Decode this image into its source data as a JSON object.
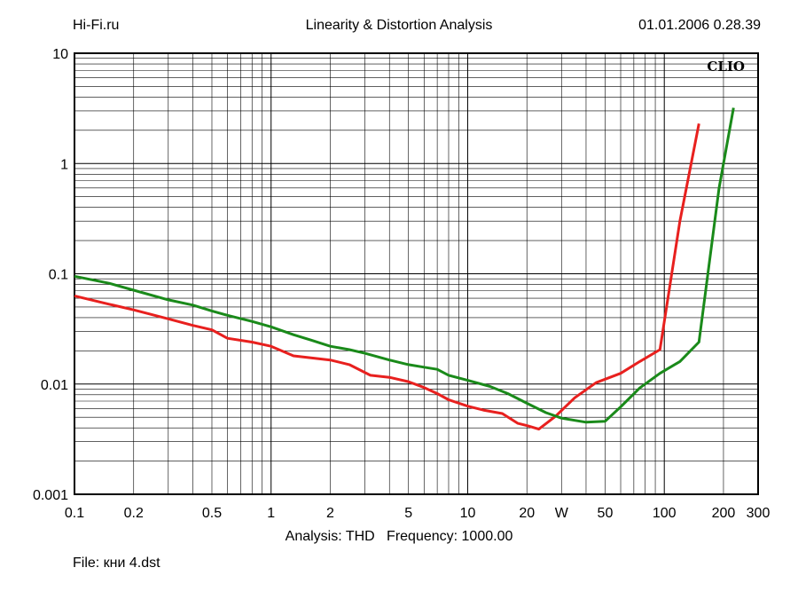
{
  "header": {
    "left": "Hi-Fi.ru",
    "title": "Linearity & Distortion Analysis",
    "timestamp": "01.01.2006 0.28.39"
  },
  "footer": {
    "analysis": "Analysis: THD   Frequency: 1000.00",
    "file": "File: кни 4.dst"
  },
  "chart_data": {
    "type": "line",
    "title": "Linearity & Distortion Analysis",
    "brand_label": "CLIO",
    "x_scale": "log",
    "y_scale": "log",
    "xlim": [
      0.1,
      300
    ],
    "ylim": [
      0.001,
      10
    ],
    "x_ticks": [
      {
        "value": 0.1,
        "label": "0.1"
      },
      {
        "value": 0.2,
        "label": "0.2"
      },
      {
        "value": 0.5,
        "label": "0.5"
      },
      {
        "value": 1,
        "label": "1"
      },
      {
        "value": 2,
        "label": "2"
      },
      {
        "value": 5,
        "label": "5"
      },
      {
        "value": 10,
        "label": "10"
      },
      {
        "value": 20,
        "label": "20"
      },
      {
        "value": 30,
        "label": "W"
      },
      {
        "value": 50,
        "label": "50"
      },
      {
        "value": 100,
        "label": "100"
      },
      {
        "value": 200,
        "label": "200"
      },
      {
        "value": 300,
        "label": "300"
      }
    ],
    "y_ticks": [
      {
        "value": 10,
        "label": "10"
      },
      {
        "value": 1,
        "label": "1"
      },
      {
        "value": 0.1,
        "label": "0.1"
      },
      {
        "value": 0.01,
        "label": "0.01"
      },
      {
        "value": 0.001,
        "label": "0.001"
      }
    ],
    "grid": true,
    "colors": {
      "grid": "#000000",
      "red": "#e8201e",
      "green": "#1a8a1a"
    },
    "series": [
      {
        "color": "#e8201e",
        "points": [
          [
            0.1,
            0.063
          ],
          [
            0.15,
            0.053
          ],
          [
            0.2,
            0.047
          ],
          [
            0.3,
            0.039
          ],
          [
            0.4,
            0.034
          ],
          [
            0.5,
            0.031
          ],
          [
            0.6,
            0.026
          ],
          [
            0.8,
            0.024
          ],
          [
            1,
            0.022
          ],
          [
            1.3,
            0.018
          ],
          [
            2,
            0.0165
          ],
          [
            2.5,
            0.015
          ],
          [
            3.2,
            0.012
          ],
          [
            4,
            0.0115
          ],
          [
            5,
            0.0105
          ],
          [
            6,
            0.0093
          ],
          [
            7,
            0.0082
          ],
          [
            8,
            0.0072
          ],
          [
            10,
            0.0063
          ],
          [
            12,
            0.0058
          ],
          [
            15,
            0.0054
          ],
          [
            18,
            0.0044
          ],
          [
            20,
            0.0042
          ],
          [
            23,
            0.0039
          ],
          [
            28,
            0.0051
          ],
          [
            35,
            0.0075
          ],
          [
            45,
            0.0103
          ],
          [
            60,
            0.0125
          ],
          [
            75,
            0.016
          ],
          [
            95,
            0.0205
          ],
          [
            120,
            0.3
          ],
          [
            150,
            2.3
          ]
        ]
      },
      {
        "color": "#1a8a1a",
        "points": [
          [
            0.1,
            0.095
          ],
          [
            0.15,
            0.082
          ],
          [
            0.2,
            0.071
          ],
          [
            0.3,
            0.058
          ],
          [
            0.4,
            0.052
          ],
          [
            0.5,
            0.046
          ],
          [
            0.6,
            0.042
          ],
          [
            0.8,
            0.037
          ],
          [
            1,
            0.033
          ],
          [
            1.3,
            0.028
          ],
          [
            1.6,
            0.025
          ],
          [
            2,
            0.022
          ],
          [
            2.5,
            0.0205
          ],
          [
            3,
            0.019
          ],
          [
            4,
            0.0165
          ],
          [
            5,
            0.015
          ],
          [
            6,
            0.0142
          ],
          [
            7,
            0.0136
          ],
          [
            8,
            0.012
          ],
          [
            10,
            0.0108
          ],
          [
            13,
            0.0095
          ],
          [
            16,
            0.0082
          ],
          [
            20,
            0.0067
          ],
          [
            25,
            0.0055
          ],
          [
            30,
            0.0049
          ],
          [
            40,
            0.0045
          ],
          [
            50,
            0.0046
          ],
          [
            60,
            0.0062
          ],
          [
            75,
            0.0092
          ],
          [
            95,
            0.0125
          ],
          [
            120,
            0.016
          ],
          [
            150,
            0.024
          ],
          [
            190,
            0.6
          ],
          [
            225,
            3.2
          ]
        ]
      }
    ]
  }
}
